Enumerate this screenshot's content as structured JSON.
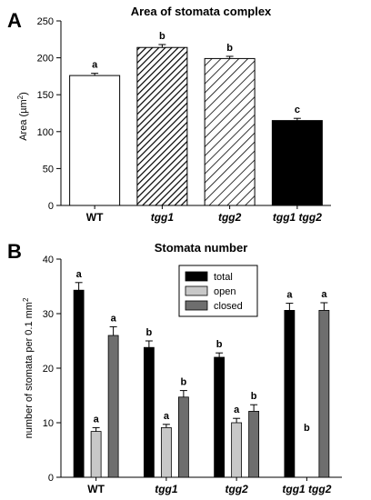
{
  "chart_data": [
    {
      "panel": "A",
      "type": "bar",
      "title": "Area of stomata complex",
      "ylabel_text": "Area (µm",
      "ylabel_sup": "2",
      "ylabel_close": ")",
      "xlabel": "",
      "ylim": [
        0,
        250
      ],
      "yticks": [
        0,
        50,
        100,
        150,
        200,
        250
      ],
      "categories": [
        "WT",
        "tgg1",
        "tgg2",
        "tgg1 tgg2"
      ],
      "category_italic": [
        false,
        true,
        true,
        true
      ],
      "values": [
        176,
        214,
        199,
        115
      ],
      "errors": [
        3,
        4,
        3,
        3
      ],
      "letters": [
        "a",
        "b",
        "b",
        "c"
      ],
      "fills": [
        "white",
        "hatch-dense",
        "hatch-sparse",
        "black"
      ],
      "grid": false
    },
    {
      "panel": "B",
      "type": "bar",
      "title": "Stomata number",
      "ylabel_text": "number of stomata per 0.1 mm",
      "ylabel_sup": "2",
      "xlabel": "",
      "ylim": [
        0,
        40
      ],
      "yticks": [
        0,
        10,
        20,
        30,
        40
      ],
      "categories": [
        "WT",
        "tgg1",
        "tgg2",
        "tgg1 tgg2"
      ],
      "category_italic": [
        false,
        true,
        true,
        true
      ],
      "series": [
        {
          "name": "total",
          "color": "#000000",
          "values": [
            34.3,
            23.8,
            22.0,
            30.6
          ],
          "errors": [
            1.4,
            1.2,
            0.8,
            1.3
          ],
          "letters": [
            "a",
            "b",
            "b",
            "a"
          ]
        },
        {
          "name": "open",
          "color": "#c8c8c8",
          "values": [
            8.4,
            9.1,
            10.0,
            0
          ],
          "errors": [
            0.7,
            0.6,
            0.8,
            0
          ],
          "letters": [
            "a",
            "a",
            "a",
            "b"
          ]
        },
        {
          "name": "closed",
          "color": "#6e6e6e",
          "values": [
            26.0,
            14.7,
            12.1,
            30.6
          ],
          "errors": [
            1.6,
            1.2,
            1.2,
            1.4
          ],
          "letters": [
            "a",
            "b",
            "b",
            "a"
          ]
        }
      ],
      "legend_position": "top-center",
      "grid": false
    }
  ]
}
